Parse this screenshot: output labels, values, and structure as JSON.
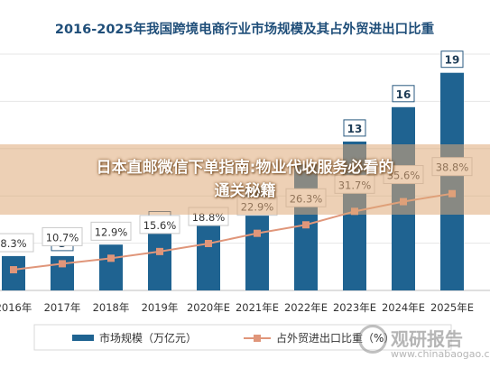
{
  "overlay": {
    "line1": "日本直邮微信下单指南:物业代收服务必看的",
    "line2": "通关秘籍"
  },
  "watermark": {
    "name": "观研报告",
    "url": "www.chinabaogao.com"
  },
  "chart_data": {
    "type": "bar",
    "title": "2016-2025年我国跨境电商行业市场规模及其占外贸进出口比重",
    "categories": [
      "2016年",
      "2017年",
      "2018年",
      "2019年",
      "2020年E",
      "2021年E",
      "2022年E",
      "2023年E",
      "2024年E",
      "2025年E"
    ],
    "series": [
      {
        "name": "市场规模（万亿元）",
        "type": "bar",
        "color": "#1f6391",
        "values": [
          3,
          3,
          4,
          5,
          7,
          9,
          11,
          13,
          16,
          19
        ],
        "labels": [
          "3",
          "3",
          "4",
          "5",
          "",
          "",
          "",
          "13",
          "16",
          "19"
        ]
      },
      {
        "name": "占外贸进出口比重（%）",
        "type": "line",
        "color": "#e0967a",
        "values": [
          8.3,
          10.7,
          12.9,
          15.6,
          18.8,
          22.9,
          26.3,
          31.7,
          35.6,
          38.8
        ],
        "labels": [
          "8.3%",
          "10.7%",
          "12.9%",
          "15.6%",
          "18.8%",
          "22.9%",
          "26.3%",
          "31.7%",
          "35.6%",
          "38.8%"
        ]
      }
    ],
    "y_bar_range": [
      0,
      20
    ],
    "y_line_range": [
      0,
      90
    ],
    "grid": true,
    "legend_position": "bottom"
  }
}
